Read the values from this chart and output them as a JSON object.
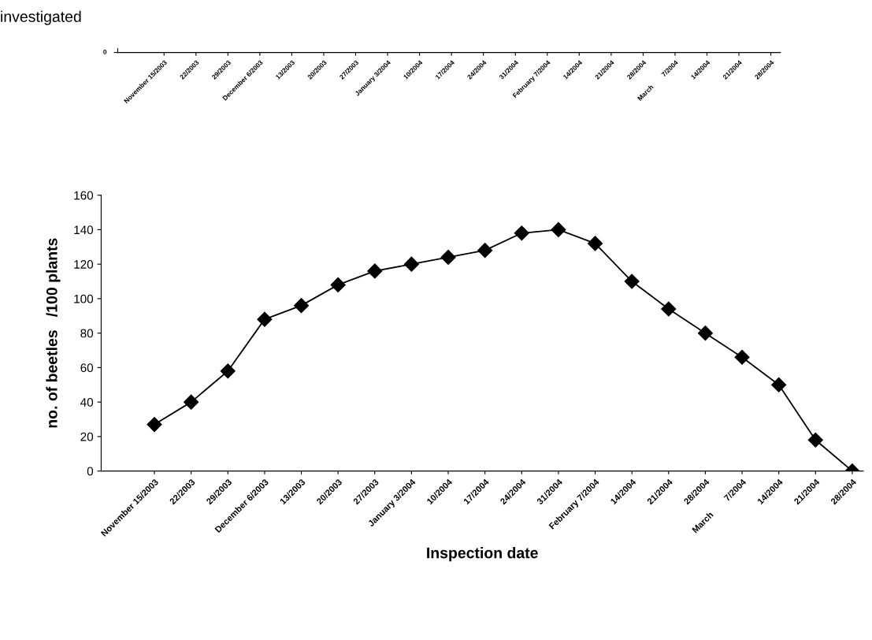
{
  "chart_data": [
    {
      "type": "other",
      "title": "investigated",
      "categories": [
        "November 15/2003",
        "22/2003",
        "29/2003",
        "December 6/2003",
        "13/2003",
        "20/2003",
        "27/2003",
        "January 3/2004",
        "10/2004",
        "17/2004",
        "24/2004",
        "31/2004",
        "February 7/2004",
        "14/2004",
        "21/2004",
        "28/2004",
        "March        7/2004",
        "14/2004",
        "21/2004",
        "28/2004"
      ],
      "annotations": [
        "0"
      ]
    },
    {
      "type": "line",
      "xlabel": "Inspection date",
      "ylabel": "no. of beetles   /100 plants",
      "categories": [
        "November 15/2003",
        "22/2003",
        "29/2003",
        "December 6/2003",
        "13/2003",
        "20/2003",
        "27/2003",
        "January 3/2004",
        "10/2004",
        "17/2004",
        "24/2004",
        "31/2004",
        "February 7/2004",
        "14/2004",
        "21/2004",
        "28/2004",
        "March        7/2004",
        "14/2004",
        "21/2004",
        "28/2004"
      ],
      "values": [
        27,
        40,
        58,
        88,
        96,
        108,
        116,
        120,
        124,
        128,
        138,
        140,
        132,
        110,
        94,
        80,
        66,
        50,
        18,
        0
      ],
      "color": "#000000",
      "marker": "diamond",
      "line_style": "solid",
      "ylim": [
        0,
        160
      ],
      "yticks": [
        0,
        20,
        40,
        60,
        80,
        100,
        120,
        140,
        160
      ],
      "grid": false,
      "legend": false
    }
  ]
}
